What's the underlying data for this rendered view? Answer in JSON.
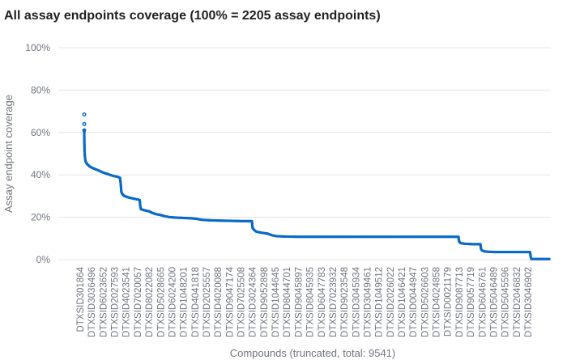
{
  "chart_data": {
    "type": "scatter",
    "title": "All assay endpoints coverage (100% = 2205 assay endpoints)",
    "xlabel": "Compounds (truncated, total: 9541)",
    "ylabel": "Assay endpoint coverage",
    "ylim": [
      0,
      100
    ],
    "yticks": [
      "0%",
      "20%",
      "40%",
      "60%",
      "80%",
      "100%"
    ],
    "grid": true,
    "color": "#0a6ac8",
    "categories": [
      "DTXSID301864",
      "DTXSID3036496",
      "DTXSID6023652",
      "DTXSID2027593",
      "DTXSID4023541",
      "DTXSID7020057",
      "DTXSID8022082",
      "DTXSID5028665",
      "DTXSID6024200",
      "DTXSID1048201",
      "DTXSID4041818",
      "DTXSID2025557",
      "DTXSID4020088",
      "DTXSID9047174",
      "DTXSID7025508",
      "DTXSID3024364",
      "DTXSID9052898",
      "DTXSID1044645",
      "DTXSID8044701",
      "DTXSID9045897",
      "DTXSID8045935",
      "DTXSID6047783",
      "DTXSID7023932",
      "DTXSID9023548",
      "DTXSID3045934",
      "DTXSID3049461",
      "DTXSID1049512",
      "DTXSID2026022",
      "DTXSID1046421",
      "DTXSID0044947",
      "DTXSID5026603",
      "DTXSID4024858",
      "DTXSID0021179",
      "DTXSID9087713",
      "DTXSID9057719",
      "DTXSID6046761",
      "DTXSID5046489",
      "DTXSID5045596",
      "DTXSID2046832",
      "DTXSID3046902"
    ],
    "profile": [
      [
        0,
        68.5
      ],
      [
        0,
        64
      ],
      [
        0,
        61
      ],
      [
        0.01,
        58
      ],
      [
        0.03,
        55
      ],
      [
        0.06,
        52
      ],
      [
        0.1,
        50
      ],
      [
        0.18,
        48
      ],
      [
        0.3,
        46.5
      ],
      [
        0.5,
        45.5
      ],
      [
        0.8,
        44.8
      ],
      [
        1.2,
        44
      ],
      [
        1.8,
        43.3
      ],
      [
        2.5,
        42.7
      ],
      [
        3.3,
        42
      ],
      [
        4.0,
        41.3
      ],
      [
        4.8,
        40.7
      ],
      [
        5.5,
        40.2
      ],
      [
        6.5,
        39.5
      ],
      [
        7.5,
        39.1
      ],
      [
        8.0,
        38.6
      ],
      [
        8.15,
        36
      ],
      [
        8.3,
        32
      ],
      [
        8.5,
        31
      ],
      [
        9.0,
        30
      ],
      [
        10,
        29.3
      ],
      [
        11,
        28.8
      ],
      [
        12,
        28.4
      ],
      [
        12.4,
        28.1
      ],
      [
        12.55,
        25
      ],
      [
        12.7,
        23.8
      ],
      [
        13.5,
        23.3
      ],
      [
        14.5,
        22.8
      ],
      [
        15.3,
        22
      ],
      [
        16,
        21.5
      ],
      [
        17,
        21.1
      ],
      [
        18,
        20.5
      ],
      [
        19,
        20.1
      ],
      [
        20,
        19.9
      ],
      [
        22,
        19.7
      ],
      [
        24,
        19.5
      ],
      [
        25,
        19.3
      ],
      [
        26,
        18.9
      ],
      [
        27,
        18.7
      ],
      [
        29,
        18.5
      ],
      [
        31,
        18.4
      ],
      [
        33,
        18.3
      ],
      [
        35,
        18.2
      ],
      [
        37.5,
        18.2
      ],
      [
        37.65,
        15
      ],
      [
        38,
        14
      ],
      [
        38.5,
        13.2
      ],
      [
        40,
        12.6
      ],
      [
        41,
        12.3
      ],
      [
        42,
        11.5
      ],
      [
        43,
        11.1
      ],
      [
        45,
        10.9
      ],
      [
        48,
        10.8
      ],
      [
        55,
        10.8
      ],
      [
        65,
        10.8
      ],
      [
        75,
        10.8
      ],
      [
        80,
        10.8
      ],
      [
        83.7,
        10.8
      ],
      [
        83.85,
        8.5
      ],
      [
        84.2,
        7.8
      ],
      [
        85,
        7.5
      ],
      [
        86,
        7.4
      ],
      [
        87,
        7.3
      ],
      [
        88,
        7.3
      ],
      [
        88.6,
        7.3
      ],
      [
        88.75,
        5
      ],
      [
        89,
        4.3
      ],
      [
        89.5,
        3.9
      ],
      [
        90.5,
        3.7
      ],
      [
        92,
        3.6
      ],
      [
        95,
        3.6
      ],
      [
        98,
        3.6
      ],
      [
        99.7,
        3.6
      ],
      [
        99.85,
        1.5
      ],
      [
        100,
        0.3
      ],
      [
        104,
        0.3
      ]
    ]
  }
}
